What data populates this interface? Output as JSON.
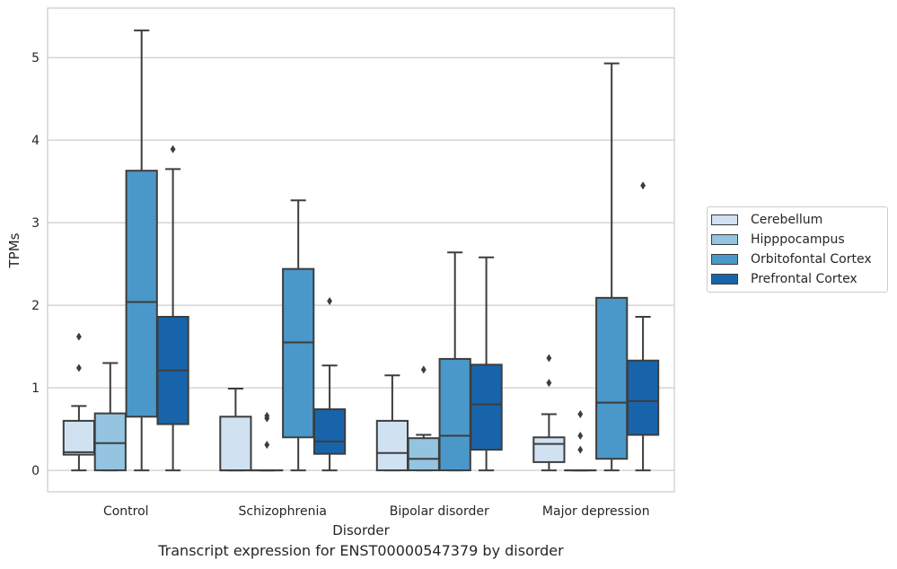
{
  "caption": "Transcript expression for ENST00000547379 by disorder",
  "chart_data": {
    "type": "box",
    "title": "",
    "xlabel": "Disorder",
    "ylabel": "TPMs",
    "ylim": [
      -0.26,
      5.6
    ],
    "yticks": [
      "0",
      "1",
      "2",
      "3",
      "4",
      "5"
    ],
    "grid": "horizontal",
    "legend_position": "right",
    "categories": [
      "Control",
      "Schizophrenia",
      "Bipolar disorder",
      "Major depression"
    ],
    "series": [
      {
        "name": "Cerebellum",
        "color": "#d0e1f2",
        "boxes": [
          {
            "whislo": 0,
            "q1": 0.19,
            "med": 0.22,
            "q3": 0.6,
            "whishi": 0.78,
            "fliers": [
              1.24,
              1.62
            ]
          },
          {
            "whislo": 0,
            "q1": 0,
            "med": 0,
            "q3": 0.65,
            "whishi": 0.99,
            "fliers": []
          },
          {
            "whislo": 0,
            "q1": 0,
            "med": 0.21,
            "q3": 0.6,
            "whishi": 1.15,
            "fliers": []
          },
          {
            "whislo": 0,
            "q1": 0.1,
            "med": 0.32,
            "q3": 0.4,
            "whishi": 0.68,
            "fliers": [
              1.06,
              1.36
            ]
          }
        ]
      },
      {
        "name": "Hipppocampus",
        "color": "#94c4df",
        "boxes": [
          {
            "whislo": 0,
            "q1": 0,
            "med": 0.33,
            "q3": 0.69,
            "whishi": 1.3,
            "fliers": []
          },
          {
            "whislo": 0,
            "q1": 0,
            "med": 0,
            "q3": 0,
            "whishi": 0,
            "fliers": [
              0.31,
              0.63,
              0.66
            ]
          },
          {
            "whislo": 0,
            "q1": 0,
            "med": 0.14,
            "q3": 0.39,
            "whishi": 0.43,
            "fliers": [
              1.22
            ]
          },
          {
            "whislo": 0,
            "q1": 0,
            "med": 0,
            "q3": 0,
            "whishi": 0,
            "fliers": [
              0.25,
              0.42,
              0.68
            ]
          }
        ]
      },
      {
        "name": "Orbitofontal Cortex",
        "color": "#4a98c9",
        "boxes": [
          {
            "whislo": 0,
            "q1": 0.65,
            "med": 2.04,
            "q3": 3.63,
            "whishi": 5.33,
            "fliers": []
          },
          {
            "whislo": 0,
            "q1": 0.4,
            "med": 1.55,
            "q3": 2.44,
            "whishi": 3.27,
            "fliers": []
          },
          {
            "whislo": 0,
            "q1": 0,
            "med": 0.42,
            "q3": 1.35,
            "whishi": 2.64,
            "fliers": []
          },
          {
            "whislo": 0,
            "q1": 0.14,
            "med": 0.82,
            "q3": 2.09,
            "whishi": 4.93,
            "fliers": []
          }
        ]
      },
      {
        "name": "Prefrontal Cortex",
        "color": "#1764ab",
        "boxes": [
          {
            "whislo": 0,
            "q1": 0.56,
            "med": 1.21,
            "q3": 1.86,
            "whishi": 3.65,
            "fliers": [
              3.89
            ]
          },
          {
            "whislo": 0,
            "q1": 0.2,
            "med": 0.35,
            "q3": 0.74,
            "whishi": 1.27,
            "fliers": [
              2.05
            ]
          },
          {
            "whislo": 0,
            "q1": 0.25,
            "med": 0.8,
            "q3": 1.28,
            "whishi": 2.58,
            "fliers": []
          },
          {
            "whislo": 0,
            "q1": 0.43,
            "med": 0.84,
            "q3": 1.33,
            "whishi": 1.86,
            "fliers": [
              3.45
            ]
          }
        ]
      }
    ]
  }
}
